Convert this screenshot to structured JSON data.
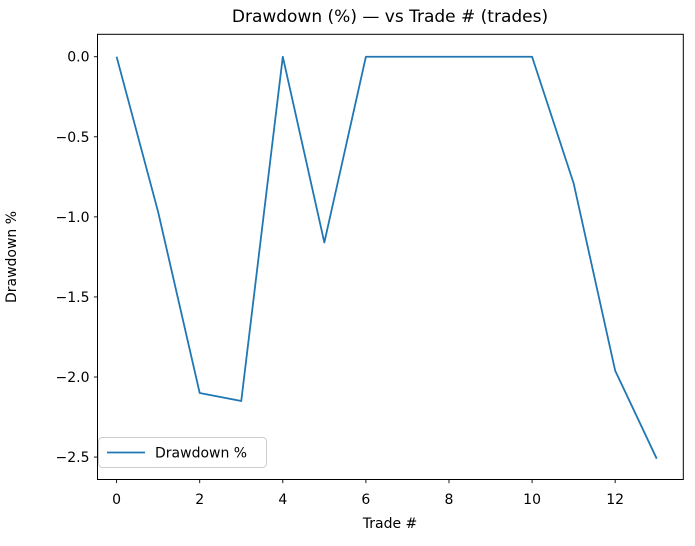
{
  "chart_data": {
    "type": "line",
    "title": "Drawdown (%) — vs Trade # (trades)",
    "xlabel": "Trade #",
    "ylabel": "Drawdown %",
    "series": [
      {
        "name": "Drawdown %",
        "color": "#1f77b4",
        "x": [
          0,
          1,
          2,
          3,
          4,
          5,
          6,
          7,
          8,
          9,
          10,
          11,
          12,
          13
        ],
        "y": [
          0.0,
          -0.97,
          -2.1,
          -2.15,
          0.0,
          -1.16,
          0.0,
          0.0,
          0.0,
          0.0,
          0.0,
          -0.79,
          -1.96,
          -2.51
        ]
      }
    ],
    "xlim": [
      -0.46,
      13.64
    ],
    "ylim": [
      -2.64,
      0.14
    ],
    "xticks": [
      0,
      2,
      4,
      6,
      8,
      10,
      12
    ],
    "xticklabels": [
      "0",
      "2",
      "4",
      "6",
      "8",
      "10",
      "12"
    ],
    "yticks": [
      0.0,
      -0.5,
      -1.0,
      -1.5,
      -2.0,
      -2.5
    ],
    "yticklabels": [
      "0.0",
      "−0.5",
      "−1.0",
      "−1.5",
      "−2.0",
      "−2.5"
    ],
    "grid": false,
    "legend": {
      "position": "lower left",
      "entries": [
        "Drawdown %"
      ]
    }
  },
  "figure": {
    "background": "#ffffff",
    "spine_color": "#000000",
    "tick_color": "#000000",
    "legend_border_color": "#cccccc",
    "legend_background": "#ffffff"
  }
}
